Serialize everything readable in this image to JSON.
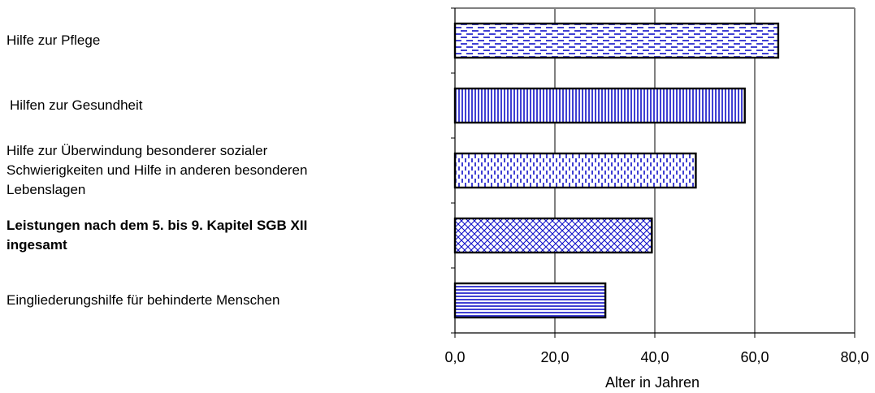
{
  "chart_data": {
    "type": "bar",
    "orientation": "horizontal",
    "categories": [
      {
        "lines": [
          "Hilfe zur Pflege"
        ],
        "bold": false
      },
      {
        "lines": [
          "Hilfen zur Gesundheit"
        ],
        "bold": false
      },
      {
        "lines": [
          "Hilfe zur Überwindung besonderer sozialer",
          "Schwierigkeiten und Hilfe in anderen besonderen",
          "Lebenslagen"
        ],
        "bold": false
      },
      {
        "lines": [
          "Leistungen nach dem 5. bis 9. Kapitel SGB XII",
          "ingesamt"
        ],
        "bold": true
      },
      {
        "lines": [
          "Eingliederungshilfe für behinderte Menschen"
        ],
        "bold": false
      }
    ],
    "values": [
      64.7,
      58.0,
      48.2,
      39.4,
      30.1
    ],
    "patterns": [
      "dashes",
      "vertical-lines",
      "dotted-vertical",
      "crosshatch",
      "horizontal-lines"
    ],
    "xlabel": "Alter in Jahren",
    "xlim": [
      0,
      80
    ],
    "xticks": [
      "0,0",
      "20,0",
      "40,0",
      "60,0",
      "80,0"
    ],
    "grid": true,
    "colors": {
      "bar_fill": "#ffffff",
      "pattern": "#1010c8",
      "bar_border": "#000000",
      "grid": "#000000",
      "plot_border": "#808080"
    }
  }
}
